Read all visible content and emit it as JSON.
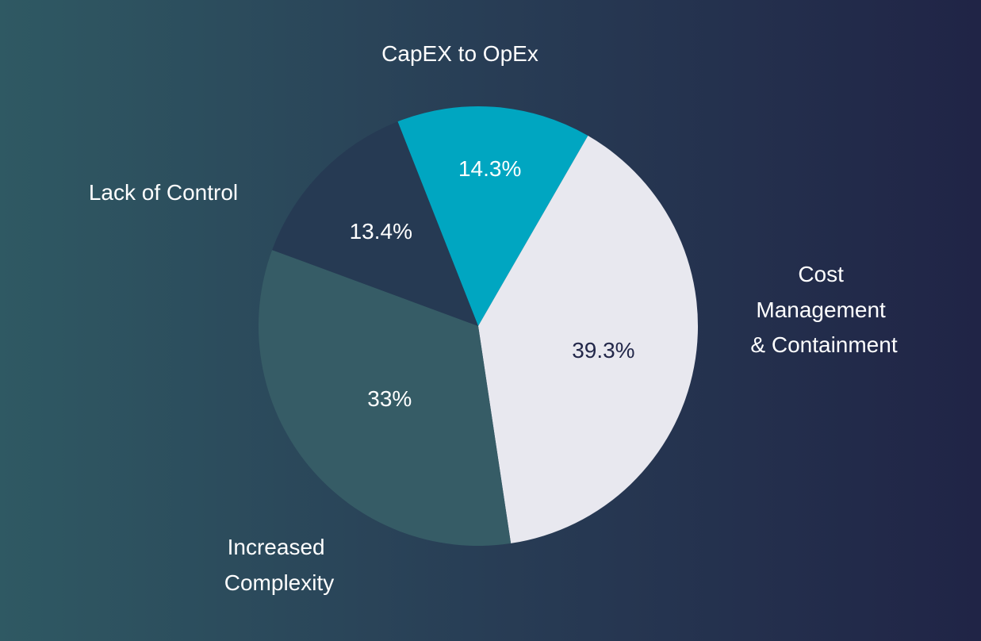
{
  "chart_data": {
    "type": "pie",
    "title": "",
    "slices": [
      {
        "label": "CapEX to OpEx",
        "value": 14.3,
        "value_label": "14.3%",
        "color": "#00a6c1",
        "text_color": "#ffffff"
      },
      {
        "label": "Cost Management & Containment",
        "value": 39.3,
        "value_label": "39.3%",
        "color": "#e8e8ef",
        "text_color": "#23284a"
      },
      {
        "label": "Increased Complexity",
        "value": 33,
        "value_label": "33%",
        "color": "#365c66",
        "text_color": "#ffffff"
      },
      {
        "label": "Lack of Control",
        "value": 13.4,
        "value_label": "13.4%",
        "color": "#263a53",
        "text_color": "#ffffff"
      }
    ],
    "legend": "none"
  }
}
